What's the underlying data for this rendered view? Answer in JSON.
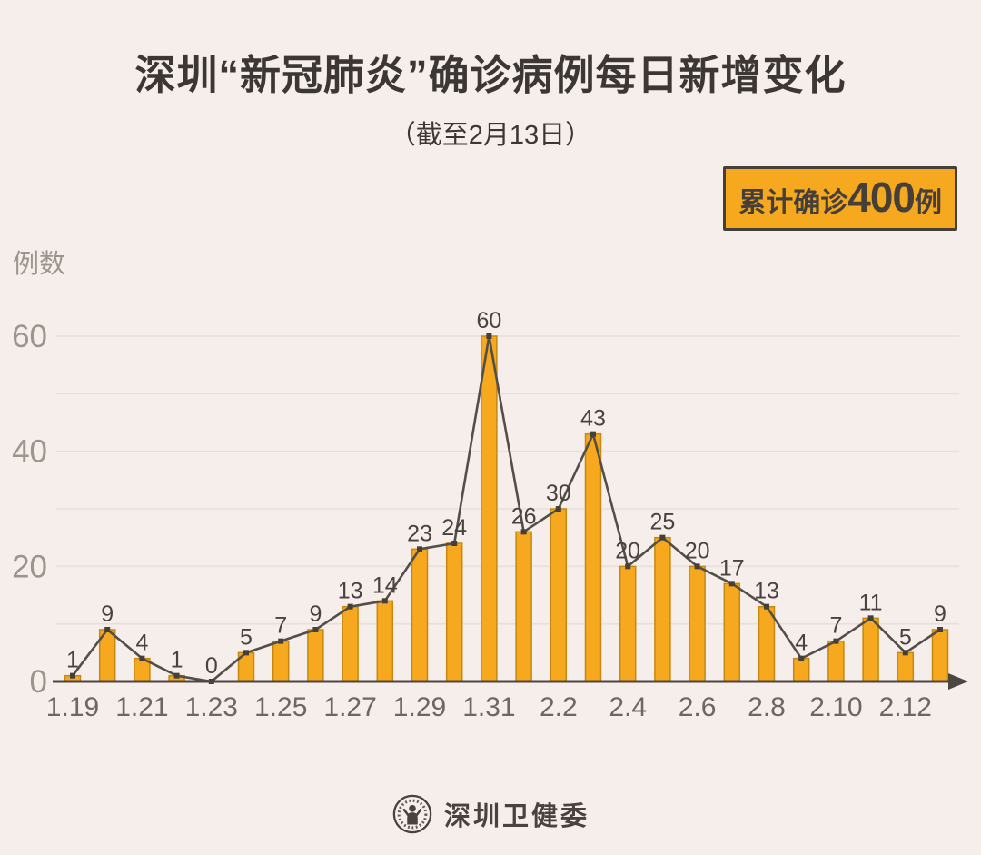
{
  "header": {
    "title": "深圳“新冠肺炎”确诊病例每日新增变化",
    "subtitle": "（截至2月13日）"
  },
  "badge": {
    "prefix": "累计确诊",
    "value": "400",
    "suffix": "例"
  },
  "chart_data": {
    "type": "bar",
    "overlay": "line-with-square-markers",
    "title": "深圳“新冠肺炎”确诊病例每日新增变化",
    "ylabel": "例数",
    "x": [
      "1.19",
      "1.20",
      "1.21",
      "1.22",
      "1.23",
      "1.24",
      "1.25",
      "1.26",
      "1.27",
      "1.28",
      "1.29",
      "1.30",
      "1.31",
      "2.1",
      "2.2",
      "2.3",
      "2.4",
      "2.5",
      "2.6",
      "2.7",
      "2.8",
      "2.9",
      "2.10",
      "2.11",
      "2.12",
      "2.13"
    ],
    "values": [
      1,
      9,
      4,
      1,
      0,
      5,
      7,
      9,
      13,
      14,
      23,
      24,
      60,
      26,
      30,
      43,
      20,
      25,
      20,
      17,
      13,
      4,
      7,
      11,
      5,
      9
    ],
    "x_tick_labels": [
      "1.19",
      "1.21",
      "1.23",
      "1.25",
      "1.27",
      "1.29",
      "1.31",
      "2.2",
      "2.4",
      "2.6",
      "2.8",
      "2.10",
      "2.12"
    ],
    "y_ticks": [
      0,
      20,
      40,
      60
    ],
    "ylim": [
      0,
      63
    ],
    "gridlines_every": 10,
    "grid_on": true,
    "legend": "none",
    "data_labels": "above each point"
  },
  "colors": {
    "background": "#f6eeeb",
    "title_text": "#3c3734",
    "bar_fill": "#F6A81E",
    "bar_border": "#C7880F",
    "trend_line": "#544e48",
    "marker": "#453f3a",
    "axis": "#4c4641",
    "grid": "#e8dfdb",
    "y_tick_text": "#9d948e",
    "x_tick_text": "#6e6660",
    "value_label_text": "#49433e",
    "badge_bg": "#F6A81E",
    "badge_border": "#453f39",
    "badge_text": "#453f39",
    "footer_text": "#49433e"
  },
  "footer": {
    "logo": "shenzhen-health-commission-seal",
    "name": "深圳卫健委"
  }
}
